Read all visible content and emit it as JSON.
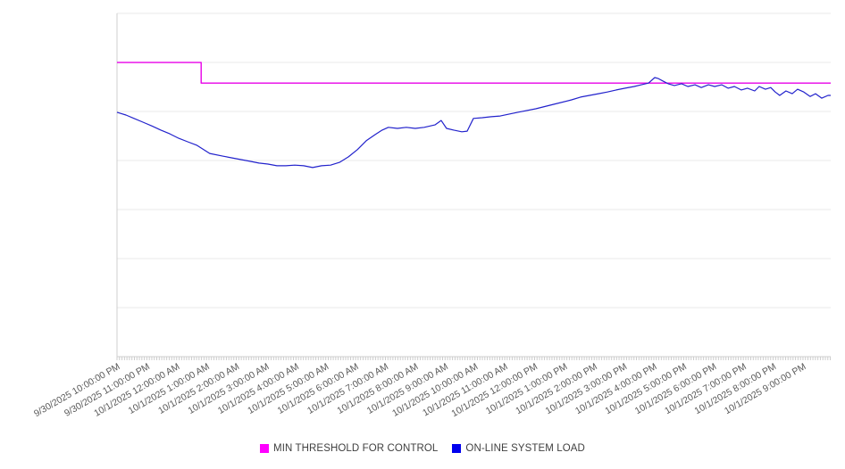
{
  "page": {
    "background": "#ffffff"
  },
  "chart_data": {
    "type": "line",
    "title": "",
    "xlabel": "",
    "ylabel": "",
    "x": {
      "tick_labels": [
        "9/30/2025 10:00:00 PM",
        "9/30/2025 11:00:00 PM",
        "10/1/2025 12:00:00 AM",
        "10/1/2025 1:00:00 AM",
        "10/1/2025 2:00:00 AM",
        "10/1/2025 3:00:00 AM",
        "10/1/2025 4:00:00 AM",
        "10/1/2025 5:00:00 AM",
        "10/1/2025 6:00:00 AM",
        "10/1/2025 7:00:00 AM",
        "10/1/2025 8:00:00 AM",
        "10/1/2025 9:00:00 AM",
        "10/1/2025 10:00:00 AM",
        "10/1/2025 11:00:00 AM",
        "10/1/2025 12:00:00 PM",
        "10/1/2025 1:00:00 PM",
        "10/1/2025 2:00:00 PM",
        "10/1/2025 3:00:00 PM",
        "10/1/2025 4:00:00 PM",
        "10/1/2025 5:00:00 PM",
        "10/1/2025 6:00:00 PM",
        "10/1/2025 7:00:00 PM",
        "10/1/2025 8:00:00 PM",
        "10/1/2025 9:00:00 PM"
      ],
      "span_hours": 23.93,
      "minor_ticks_per_hour": 12,
      "label_rotation_deg": -30
    },
    "y": {
      "labels_visible": false,
      "gridlines": 8,
      "units": "relative percent of plot height (y-axis has no visible value labels)"
    },
    "legend_position": "bottom-center",
    "grid": "horizontal-only",
    "series": [
      {
        "name": "MIN THRESHOLD FOR CONTROL",
        "color": "#E800E8",
        "legend_color": "#FF00FF",
        "shape": "step-down at hour 2.82",
        "points": [
          [
            0,
            85.7
          ],
          [
            2.82,
            85.7
          ],
          [
            2.82,
            79.7
          ],
          [
            23.93,
            79.7
          ]
        ]
      },
      {
        "name": "ON-LINE SYSTEM LOAD",
        "color": "#2222CC",
        "legend_color": "#0000EE",
        "shape": "dips overnight to minimum near hour 6.5, rises to peak near hour 18, noisy tail just below threshold",
        "points": [
          [
            0,
            71.2
          ],
          [
            0.3,
            70.4
          ],
          [
            0.57,
            69.4
          ],
          [
            0.87,
            68.3
          ],
          [
            1.17,
            67.2
          ],
          [
            1.47,
            66.0
          ],
          [
            1.77,
            64.9
          ],
          [
            2.07,
            63.6
          ],
          [
            2.37,
            62.6
          ],
          [
            2.67,
            61.6
          ],
          [
            3.11,
            59.2
          ],
          [
            3.56,
            58.4
          ],
          [
            3.86,
            57.9
          ],
          [
            4.16,
            57.4
          ],
          [
            4.46,
            56.9
          ],
          [
            4.76,
            56.4
          ],
          [
            5.06,
            56.1
          ],
          [
            5.36,
            55.6
          ],
          [
            5.66,
            55.6
          ],
          [
            5.96,
            55.8
          ],
          [
            6.26,
            55.6
          ],
          [
            6.56,
            55.1
          ],
          [
            6.86,
            55.6
          ],
          [
            7.16,
            55.8
          ],
          [
            7.46,
            56.6
          ],
          [
            7.76,
            58.2
          ],
          [
            8.06,
            60.3
          ],
          [
            8.36,
            62.9
          ],
          [
            8.66,
            64.7
          ],
          [
            8.89,
            66.0
          ],
          [
            9.1,
            66.8
          ],
          [
            9.4,
            66.5
          ],
          [
            9.7,
            66.8
          ],
          [
            10.0,
            66.5
          ],
          [
            10.3,
            66.8
          ],
          [
            10.66,
            67.5
          ],
          [
            10.87,
            68.8
          ],
          [
            11.05,
            66.5
          ],
          [
            11.29,
            66.0
          ],
          [
            11.56,
            65.5
          ],
          [
            11.74,
            65.7
          ],
          [
            11.95,
            69.4
          ],
          [
            12.25,
            69.6
          ],
          [
            12.55,
            69.9
          ],
          [
            12.85,
            70.1
          ],
          [
            13.44,
            71.2
          ],
          [
            14.04,
            72.2
          ],
          [
            14.64,
            73.5
          ],
          [
            15.24,
            74.8
          ],
          [
            15.54,
            75.6
          ],
          [
            15.84,
            76.1
          ],
          [
            16.14,
            76.6
          ],
          [
            16.44,
            77.1
          ],
          [
            16.74,
            77.7
          ],
          [
            17.04,
            78.2
          ],
          [
            17.34,
            78.7
          ],
          [
            17.58,
            79.2
          ],
          [
            17.82,
            79.7
          ],
          [
            18.03,
            81.3
          ],
          [
            18.15,
            81.0
          ],
          [
            18.3,
            80.3
          ],
          [
            18.48,
            79.5
          ],
          [
            18.69,
            79.0
          ],
          [
            18.93,
            79.5
          ],
          [
            19.14,
            78.7
          ],
          [
            19.38,
            79.2
          ],
          [
            19.59,
            78.4
          ],
          [
            19.83,
            79.2
          ],
          [
            20.04,
            78.7
          ],
          [
            20.28,
            79.2
          ],
          [
            20.49,
            78.2
          ],
          [
            20.7,
            78.7
          ],
          [
            20.93,
            77.7
          ],
          [
            21.14,
            78.2
          ],
          [
            21.38,
            77.4
          ],
          [
            21.53,
            78.7
          ],
          [
            21.74,
            77.9
          ],
          [
            21.92,
            78.4
          ],
          [
            22.07,
            77.1
          ],
          [
            22.22,
            76.1
          ],
          [
            22.43,
            77.4
          ],
          [
            22.64,
            76.6
          ],
          [
            22.82,
            77.9
          ],
          [
            23.03,
            77.1
          ],
          [
            23.24,
            75.8
          ],
          [
            23.42,
            76.6
          ],
          [
            23.63,
            75.3
          ],
          [
            23.84,
            76.1
          ],
          [
            23.93,
            76.1
          ]
        ]
      }
    ]
  },
  "colors": {
    "gridline": "#E9E9E9",
    "axis": "#CFCFCF",
    "tick": "#CCCCCC",
    "axis_label": "#595959",
    "legend_text": "#404040"
  }
}
